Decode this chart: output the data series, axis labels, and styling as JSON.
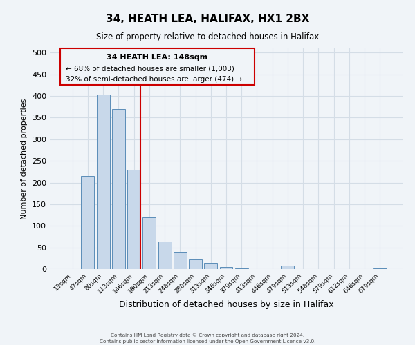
{
  "title": "34, HEATH LEA, HALIFAX, HX1 2BX",
  "subtitle": "Size of property relative to detached houses in Halifax",
  "xlabel": "Distribution of detached houses by size in Halifax",
  "ylabel": "Number of detached properties",
  "bar_color": "#c8d8ea",
  "bar_edge_color": "#5b8db8",
  "bg_color": "#f0f4f8",
  "grid_color": "#d4dde6",
  "annotation_box_color": "#cc0000",
  "marker_line_color": "#cc0000",
  "annotation_title": "34 HEATH LEA: 148sqm",
  "annotation_line1": "← 68% of detached houses are smaller (1,003)",
  "annotation_line2": "32% of semi-detached houses are larger (474) →",
  "categories": [
    "13sqm",
    "47sqm",
    "80sqm",
    "113sqm",
    "146sqm",
    "180sqm",
    "213sqm",
    "246sqm",
    "280sqm",
    "313sqm",
    "346sqm",
    "379sqm",
    "413sqm",
    "446sqm",
    "479sqm",
    "513sqm",
    "546sqm",
    "579sqm",
    "612sqm",
    "646sqm",
    "679sqm"
  ],
  "values": [
    0,
    215,
    403,
    370,
    230,
    120,
    63,
    40,
    22,
    14,
    5,
    2,
    0,
    0,
    8,
    0,
    0,
    0,
    0,
    0,
    2
  ],
  "ylim": [
    0,
    510
  ],
  "yticks": [
    0,
    50,
    100,
    150,
    200,
    250,
    300,
    350,
    400,
    450,
    500
  ],
  "footer_line1": "Contains HM Land Registry data © Crown copyright and database right 2024.",
  "footer_line2": "Contains public sector information licensed under the Open Government Licence v3.0."
}
